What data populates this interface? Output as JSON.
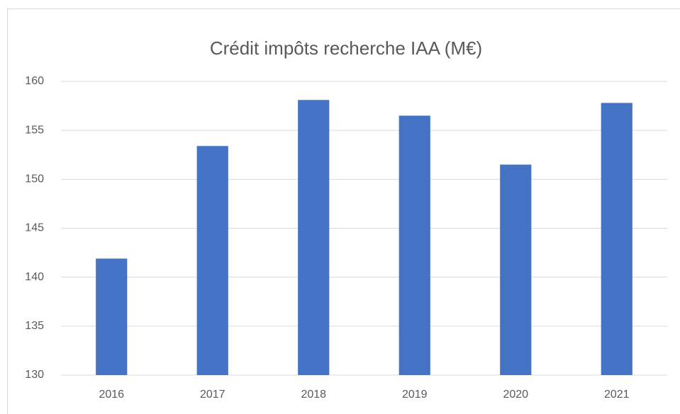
{
  "chart_data": {
    "type": "bar",
    "title": "Crédit impôts recherche IAA (M€)",
    "categories": [
      "2016",
      "2017",
      "2018",
      "2019",
      "2020",
      "2021"
    ],
    "values": [
      141.9,
      153.4,
      158.1,
      156.5,
      151.5,
      157.8
    ],
    "color": "#4472c4",
    "ylim": [
      130,
      160
    ],
    "yticks": [
      130,
      135,
      140,
      145,
      150,
      155,
      160
    ],
    "grid": true
  }
}
